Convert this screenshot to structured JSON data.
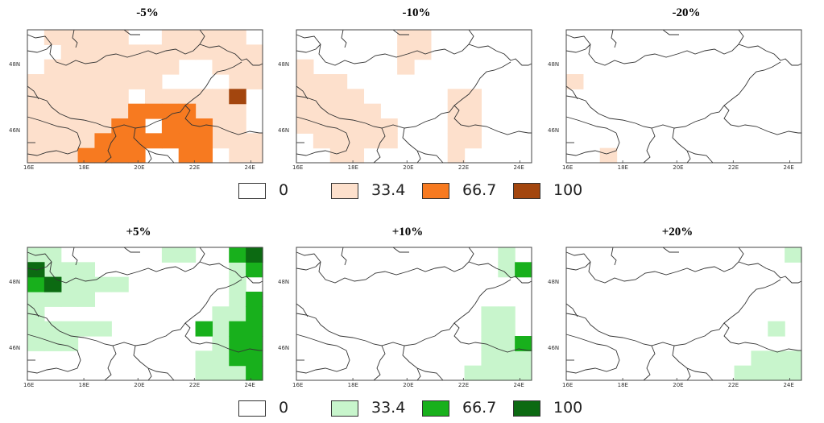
{
  "axes": {
    "lat_labels": [
      "48N",
      "46N"
    ],
    "lon_labels": [
      "16E",
      "18E",
      "20E",
      "22E",
      "24E"
    ]
  },
  "top_row": {
    "panels": [
      {
        "title": "-5%",
        "palette": "orange",
        "fills": [
          {
            "lvl": 1,
            "cells": [
              [
                0,
                1
              ],
              [
                0,
                2
              ],
              [
                0,
                3
              ],
              [
                0,
                4
              ],
              [
                0,
                5
              ],
              [
                0,
                8
              ],
              [
                0,
                9
              ],
              [
                0,
                10
              ],
              [
                0,
                11
              ],
              [
                0,
                12
              ],
              [
                1,
                2
              ],
              [
                1,
                3
              ],
              [
                1,
                4
              ],
              [
                1,
                5
              ],
              [
                1,
                6
              ],
              [
                1,
                7
              ],
              [
                1,
                8
              ],
              [
                1,
                9
              ],
              [
                1,
                10
              ],
              [
                1,
                11
              ],
              [
                1,
                12
              ],
              [
                1,
                13
              ],
              [
                2,
                1
              ],
              [
                2,
                2
              ],
              [
                2,
                3
              ],
              [
                2,
                4
              ],
              [
                2,
                5
              ],
              [
                2,
                6
              ],
              [
                2,
                7
              ],
              [
                2,
                8
              ],
              [
                2,
                11
              ],
              [
                2,
                12
              ],
              [
                2,
                13
              ],
              [
                3,
                0
              ],
              [
                3,
                1
              ],
              [
                3,
                2
              ],
              [
                3,
                3
              ],
              [
                3,
                4
              ],
              [
                3,
                5
              ],
              [
                3,
                6
              ],
              [
                3,
                7
              ],
              [
                3,
                12
              ],
              [
                3,
                13
              ],
              [
                4,
                0
              ],
              [
                4,
                1
              ],
              [
                4,
                2
              ],
              [
                4,
                3
              ],
              [
                4,
                4
              ],
              [
                4,
                5
              ],
              [
                4,
                7
              ],
              [
                4,
                8
              ],
              [
                4,
                9
              ],
              [
                4,
                10
              ],
              [
                4,
                11
              ],
              [
                5,
                0
              ],
              [
                5,
                1
              ],
              [
                5,
                2
              ],
              [
                5,
                3
              ],
              [
                5,
                4
              ],
              [
                5,
                5
              ],
              [
                5,
                10
              ],
              [
                5,
                11
              ],
              [
                5,
                12
              ],
              [
                6,
                0
              ],
              [
                6,
                1
              ],
              [
                6,
                2
              ],
              [
                6,
                3
              ],
              [
                6,
                4
              ],
              [
                6,
                11
              ],
              [
                6,
                12
              ],
              [
                7,
                0
              ],
              [
                7,
                1
              ],
              [
                7,
                2
              ],
              [
                7,
                3
              ],
              [
                7,
                11
              ],
              [
                7,
                12
              ],
              [
                7,
                13
              ],
              [
                8,
                0
              ],
              [
                8,
                1
              ],
              [
                8,
                2
              ],
              [
                8,
                12
              ],
              [
                8,
                13
              ]
            ]
          },
          {
            "lvl": 2,
            "cells": [
              [
                5,
                6
              ],
              [
                5,
                7
              ],
              [
                5,
                8
              ],
              [
                5,
                9
              ],
              [
                6,
                5
              ],
              [
                6,
                6
              ],
              [
                6,
                8
              ],
              [
                6,
                9
              ],
              [
                6,
                10
              ],
              [
                7,
                4
              ],
              [
                7,
                5
              ],
              [
                7,
                6
              ],
              [
                7,
                7
              ],
              [
                7,
                8
              ],
              [
                7,
                9
              ],
              [
                7,
                10
              ],
              [
                8,
                3
              ],
              [
                8,
                4
              ],
              [
                8,
                5
              ],
              [
                8,
                6
              ],
              [
                8,
                9
              ],
              [
                8,
                10
              ]
            ]
          },
          {
            "lvl": 3,
            "cells": [
              [
                4,
                12
              ]
            ]
          }
        ]
      },
      {
        "title": "-10%",
        "palette": "orange",
        "fills": [
          {
            "lvl": 1,
            "cells": [
              [
                0,
                6
              ],
              [
                0,
                7
              ],
              [
                1,
                6
              ],
              [
                1,
                7
              ],
              [
                2,
                0
              ],
              [
                2,
                6
              ],
              [
                3,
                0
              ],
              [
                3,
                1
              ],
              [
                3,
                2
              ],
              [
                4,
                0
              ],
              [
                4,
                1
              ],
              [
                4,
                2
              ],
              [
                4,
                3
              ],
              [
                4,
                9
              ],
              [
                4,
                10
              ],
              [
                5,
                0
              ],
              [
                5,
                1
              ],
              [
                5,
                2
              ],
              [
                5,
                3
              ],
              [
                5,
                4
              ],
              [
                5,
                9
              ],
              [
                5,
                10
              ],
              [
                6,
                0
              ],
              [
                6,
                1
              ],
              [
                6,
                2
              ],
              [
                6,
                3
              ],
              [
                6,
                4
              ],
              [
                6,
                5
              ],
              [
                6,
                9
              ],
              [
                6,
                10
              ],
              [
                7,
                1
              ],
              [
                7,
                2
              ],
              [
                7,
                3
              ],
              [
                7,
                4
              ],
              [
                7,
                5
              ],
              [
                7,
                9
              ],
              [
                7,
                10
              ],
              [
                8,
                2
              ],
              [
                8,
                3
              ],
              [
                8,
                9
              ]
            ]
          }
        ]
      },
      {
        "title": "-20%",
        "palette": "orange",
        "fills": [
          {
            "lvl": 1,
            "cells": [
              [
                3,
                0
              ],
              [
                8,
                2
              ]
            ]
          }
        ]
      }
    ],
    "legend": {
      "items": [
        {
          "label": "0",
          "color": "#ffffff"
        },
        {
          "label": "33.4",
          "color": "#fde0cc"
        },
        {
          "label": "66.7",
          "color": "#f77a20"
        },
        {
          "label": "100",
          "color": "#a3460e"
        }
      ]
    }
  },
  "bottom_row": {
    "panels": [
      {
        "title": "+5%",
        "palette": "green",
        "fills": [
          {
            "lvl": 1,
            "cells": [
              [
                0,
                0
              ],
              [
                0,
                1
              ],
              [
                0,
                8
              ],
              [
                0,
                9
              ],
              [
                0,
                12
              ],
              [
                1,
                0
              ],
              [
                1,
                1
              ],
              [
                1,
                2
              ],
              [
                1,
                3
              ],
              [
                1,
                12
              ],
              [
                2,
                0
              ],
              [
                2,
                2
              ],
              [
                2,
                3
              ],
              [
                2,
                4
              ],
              [
                2,
                5
              ],
              [
                2,
                12
              ],
              [
                3,
                0
              ],
              [
                3,
                1
              ],
              [
                3,
                2
              ],
              [
                3,
                3
              ],
              [
                3,
                12
              ],
              [
                4,
                0
              ],
              [
                4,
                11
              ],
              [
                4,
                12
              ],
              [
                5,
                0
              ],
              [
                5,
                1
              ],
              [
                5,
                2
              ],
              [
                5,
                11
              ],
              [
                6,
                0
              ],
              [
                6,
                1
              ],
              [
                6,
                2
              ],
              [
                6,
                11
              ],
              [
                6,
                12
              ],
              [
                7,
                10
              ],
              [
                7,
                11
              ],
              [
                7,
                12
              ],
              [
                8,
                10
              ],
              [
                8,
                11
              ],
              [
                8,
                12
              ],
              [
                5,
                3
              ],
              [
                5,
                4
              ]
            ]
          },
          {
            "lvl": 2,
            "cells": [
              [
                0,
                12
              ],
              [
                0,
                13
              ],
              [
                1,
                13
              ],
              [
                1,
                0
              ],
              [
                2,
                0
              ],
              [
                2,
                1
              ],
              [
                5,
                12
              ],
              [
                5,
                13
              ],
              [
                6,
                12
              ],
              [
                6,
                13
              ],
              [
                7,
                12
              ],
              [
                7,
                13
              ],
              [
                8,
                13
              ],
              [
                4,
                13
              ],
              [
                3,
                13
              ],
              [
                5,
                10
              ]
            ]
          },
          {
            "lvl": 3,
            "cells": [
              [
                0,
                13
              ],
              [
                1,
                0
              ],
              [
                2,
                1
              ]
            ]
          }
        ]
      },
      {
        "title": "+10%",
        "palette": "green",
        "fills": [
          {
            "lvl": 1,
            "cells": [
              [
                0,
                12
              ],
              [
                1,
                12
              ],
              [
                1,
                13
              ],
              [
                4,
                11
              ],
              [
                4,
                12
              ],
              [
                5,
                11
              ],
              [
                5,
                12
              ],
              [
                6,
                11
              ],
              [
                6,
                12
              ],
              [
                6,
                13
              ],
              [
                7,
                11
              ],
              [
                7,
                12
              ],
              [
                7,
                13
              ],
              [
                8,
                10
              ],
              [
                8,
                11
              ],
              [
                8,
                12
              ],
              [
                8,
                13
              ]
            ]
          },
          {
            "lvl": 2,
            "cells": [
              [
                1,
                13
              ],
              [
                6,
                13
              ]
            ]
          }
        ]
      },
      {
        "title": "+20%",
        "palette": "green",
        "fills": [
          {
            "lvl": 1,
            "cells": [
              [
                0,
                13
              ],
              [
                5,
                12
              ],
              [
                7,
                11
              ],
              [
                7,
                12
              ],
              [
                7,
                13
              ],
              [
                8,
                10
              ],
              [
                8,
                11
              ],
              [
                8,
                12
              ],
              [
                8,
                13
              ]
            ]
          }
        ]
      }
    ],
    "legend": {
      "items": [
        {
          "label": "0",
          "color": "#ffffff"
        },
        {
          "label": "33.4",
          "color": "#c8f5cc"
        },
        {
          "label": "66.7",
          "color": "#18b01c"
        },
        {
          "label": "100",
          "color": "#0c6a12"
        }
      ]
    }
  },
  "palettes": {
    "orange": [
      "#ffffff",
      "#fde0cc",
      "#f77a20",
      "#a3460e"
    ],
    "green": [
      "#ffffff",
      "#c8f5cc",
      "#18b01c",
      "#0c6a12"
    ]
  }
}
